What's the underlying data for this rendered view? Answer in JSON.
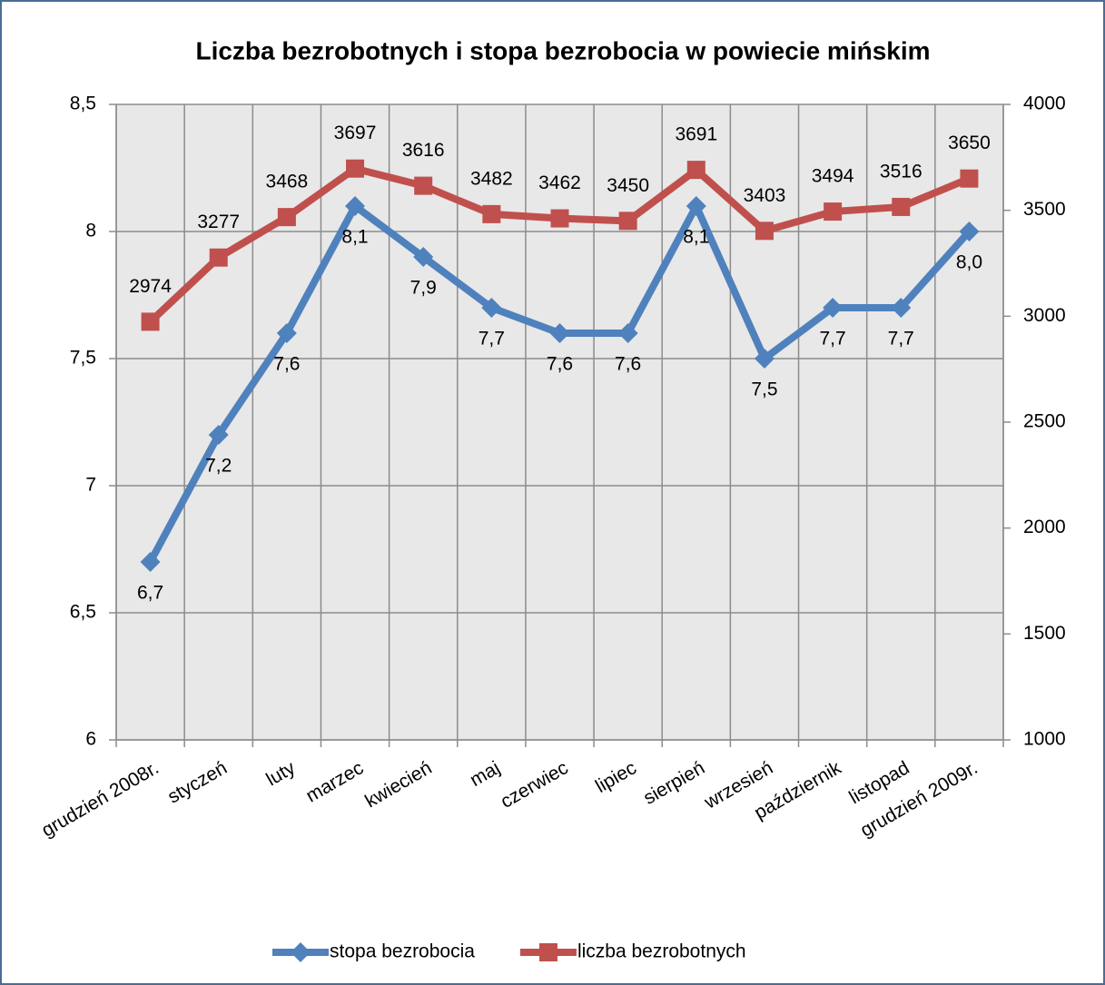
{
  "chart_data": {
    "type": "line",
    "title": "Liczba bezrobotnych i stopa bezrobocia w powiecie mińskim",
    "categories": [
      "grudzień 2008r.",
      "styczeń",
      "luty",
      "marzec",
      "kwiecień",
      "maj",
      "czerwiec",
      "lipiec",
      "sierpień",
      "wrzesień",
      "październik",
      "listopad",
      "grudzień 2009r."
    ],
    "series": [
      {
        "name": "stopa bezrobocia",
        "color": "#4f81bd",
        "axis": "y",
        "values": [
          6.7,
          7.2,
          7.6,
          8.1,
          7.9,
          7.7,
          7.6,
          7.6,
          8.1,
          7.5,
          7.7,
          7.7,
          8.0
        ],
        "value_labels": [
          "6,7",
          "7,2",
          "7,6",
          "8,1",
          "7,9",
          "7,7",
          "7,6",
          "7,6",
          "8,1",
          "7,5",
          "7,7",
          "7,7",
          "8,0"
        ]
      },
      {
        "name": "liczba bezrobotnych",
        "color": "#c0504d",
        "axis": "y2",
        "values": [
          2974,
          3277,
          3468,
          3697,
          3616,
          3482,
          3462,
          3450,
          3691,
          3403,
          3494,
          3516,
          3650
        ]
      }
    ],
    "ylim": [
      6,
      8.5
    ],
    "yticks": [
      6,
      {
        "value": 6.5,
        "label": "6,5"
      },
      7,
      {
        "value": 7.5,
        "label": "7,5"
      },
      8,
      {
        "value": 8.5,
        "label": "8,5"
      }
    ],
    "y2lim": [
      1000,
      4000
    ],
    "y2ticks": [
      1000,
      1500,
      2000,
      2500,
      3000,
      3500,
      4000
    ],
    "grid": true,
    "legend": "bottom"
  }
}
